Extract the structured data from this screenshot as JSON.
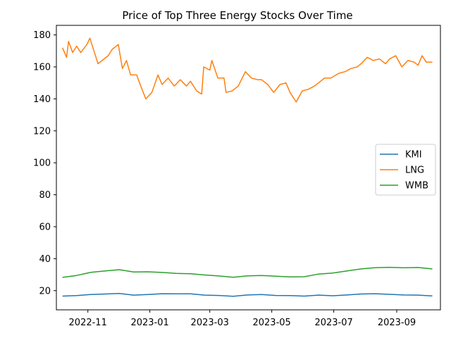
{
  "chart_data": {
    "type": "line",
    "title": "Price of Top Three Energy Stocks Over Time",
    "xlabel": "",
    "ylabel": "",
    "x_range": [
      "2022-10-01",
      "2023-10-14"
    ],
    "ylim": [
      8,
      186
    ],
    "x_ticks": [
      {
        "date": "2022-11-01",
        "label": "2022-11"
      },
      {
        "date": "2023-01-01",
        "label": "2023-01"
      },
      {
        "date": "2023-03-01",
        "label": "2023-03"
      },
      {
        "date": "2023-05-01",
        "label": "2023-05"
      },
      {
        "date": "2023-07-01",
        "label": "2023-07"
      },
      {
        "date": "2023-09-01",
        "label": "2023-09"
      }
    ],
    "y_ticks": [
      20,
      40,
      60,
      80,
      100,
      120,
      140,
      160,
      180
    ],
    "grid": false,
    "legend_position": "center-right",
    "series": [
      {
        "name": "KMI",
        "color": "#1f77b4",
        "points": [
          [
            "2022-10-07",
            16.6
          ],
          [
            "2022-10-21",
            16.9
          ],
          [
            "2022-11-04",
            17.6
          ],
          [
            "2022-11-18",
            17.9
          ],
          [
            "2022-12-02",
            18.2
          ],
          [
            "2022-12-16",
            17.2
          ],
          [
            "2022-12-30",
            17.6
          ],
          [
            "2023-01-13",
            18.1
          ],
          [
            "2023-01-27",
            18.0
          ],
          [
            "2023-02-10",
            18.0
          ],
          [
            "2023-02-24",
            17.2
          ],
          [
            "2023-03-10",
            17.0
          ],
          [
            "2023-03-24",
            16.5
          ],
          [
            "2023-04-07",
            17.3
          ],
          [
            "2023-04-21",
            17.6
          ],
          [
            "2023-05-05",
            17.0
          ],
          [
            "2023-05-19",
            16.9
          ],
          [
            "2023-06-02",
            16.6
          ],
          [
            "2023-06-16",
            17.2
          ],
          [
            "2023-06-30",
            16.8
          ],
          [
            "2023-07-14",
            17.3
          ],
          [
            "2023-07-28",
            17.9
          ],
          [
            "2023-08-11",
            18.1
          ],
          [
            "2023-08-25",
            17.7
          ],
          [
            "2023-09-08",
            17.3
          ],
          [
            "2023-09-22",
            17.2
          ],
          [
            "2023-10-06",
            16.7
          ]
        ]
      },
      {
        "name": "LNG",
        "color": "#ff7f0e",
        "points": [
          [
            "2022-10-07",
            172
          ],
          [
            "2022-10-11",
            166
          ],
          [
            "2022-10-13",
            176
          ],
          [
            "2022-10-17",
            169
          ],
          [
            "2022-10-21",
            173
          ],
          [
            "2022-10-25",
            169
          ],
          [
            "2022-10-31",
            174
          ],
          [
            "2022-11-03",
            178
          ],
          [
            "2022-11-07",
            170
          ],
          [
            "2022-11-11",
            162
          ],
          [
            "2022-11-15",
            164
          ],
          [
            "2022-11-21",
            167
          ],
          [
            "2022-11-25",
            171
          ],
          [
            "2022-12-01",
            174
          ],
          [
            "2022-12-05",
            159
          ],
          [
            "2022-12-09",
            164
          ],
          [
            "2022-12-13",
            155
          ],
          [
            "2022-12-19",
            155
          ],
          [
            "2022-12-23",
            148
          ],
          [
            "2022-12-28",
            140
          ],
          [
            "2023-01-03",
            144
          ],
          [
            "2023-01-09",
            155
          ],
          [
            "2023-01-13",
            149
          ],
          [
            "2023-01-19",
            153
          ],
          [
            "2023-01-25",
            148
          ],
          [
            "2023-01-31",
            152
          ],
          [
            "2023-02-06",
            148
          ],
          [
            "2023-02-10",
            151
          ],
          [
            "2023-02-16",
            145
          ],
          [
            "2023-02-21",
            143
          ],
          [
            "2023-02-23",
            160
          ],
          [
            "2023-03-01",
            158
          ],
          [
            "2023-03-03",
            164
          ],
          [
            "2023-03-09",
            153
          ],
          [
            "2023-03-15",
            153
          ],
          [
            "2023-03-17",
            144
          ],
          [
            "2023-03-23",
            145
          ],
          [
            "2023-03-29",
            148
          ],
          [
            "2023-04-05",
            157
          ],
          [
            "2023-04-11",
            153
          ],
          [
            "2023-04-17",
            152
          ],
          [
            "2023-04-21",
            152
          ],
          [
            "2023-04-27",
            149
          ],
          [
            "2023-05-03",
            144
          ],
          [
            "2023-05-09",
            149
          ],
          [
            "2023-05-15",
            150
          ],
          [
            "2023-05-19",
            144
          ],
          [
            "2023-05-25",
            138
          ],
          [
            "2023-05-31",
            145
          ],
          [
            "2023-06-06",
            146
          ],
          [
            "2023-06-12",
            148
          ],
          [
            "2023-06-16",
            150
          ],
          [
            "2023-06-22",
            153
          ],
          [
            "2023-06-28",
            153
          ],
          [
            "2023-07-06",
            156
          ],
          [
            "2023-07-12",
            157
          ],
          [
            "2023-07-18",
            159
          ],
          [
            "2023-07-24",
            160
          ],
          [
            "2023-07-28",
            162
          ],
          [
            "2023-08-03",
            166
          ],
          [
            "2023-08-09",
            164
          ],
          [
            "2023-08-15",
            165
          ],
          [
            "2023-08-21",
            162
          ],
          [
            "2023-08-25",
            165
          ],
          [
            "2023-08-31",
            167
          ],
          [
            "2023-09-06",
            160
          ],
          [
            "2023-09-12",
            164
          ],
          [
            "2023-09-18",
            163
          ],
          [
            "2023-09-22",
            161
          ],
          [
            "2023-09-26",
            167
          ],
          [
            "2023-09-30",
            163
          ],
          [
            "2023-10-06",
            163
          ]
        ]
      },
      {
        "name": "WMB",
        "color": "#2ca02c",
        "points": [
          [
            "2022-10-07",
            28.3
          ],
          [
            "2022-10-21",
            29.5
          ],
          [
            "2022-11-04",
            31.5
          ],
          [
            "2022-11-18",
            32.3
          ],
          [
            "2022-12-02",
            33.1
          ],
          [
            "2022-12-16",
            31.7
          ],
          [
            "2022-12-30",
            31.8
          ],
          [
            "2023-01-13",
            31.4
          ],
          [
            "2023-01-27",
            30.8
          ],
          [
            "2023-02-10",
            30.6
          ],
          [
            "2023-02-24",
            29.8
          ],
          [
            "2023-03-10",
            29.2
          ],
          [
            "2023-03-24",
            28.4
          ],
          [
            "2023-04-07",
            29.3
          ],
          [
            "2023-04-21",
            29.5
          ],
          [
            "2023-05-05",
            29.0
          ],
          [
            "2023-05-19",
            28.6
          ],
          [
            "2023-06-02",
            28.7
          ],
          [
            "2023-06-16",
            30.4
          ],
          [
            "2023-06-30",
            31.0
          ],
          [
            "2023-07-14",
            32.3
          ],
          [
            "2023-07-28",
            33.6
          ],
          [
            "2023-08-11",
            34.4
          ],
          [
            "2023-08-25",
            34.6
          ],
          [
            "2023-09-08",
            34.3
          ],
          [
            "2023-09-22",
            34.5
          ],
          [
            "2023-10-06",
            33.6
          ]
        ]
      }
    ]
  }
}
